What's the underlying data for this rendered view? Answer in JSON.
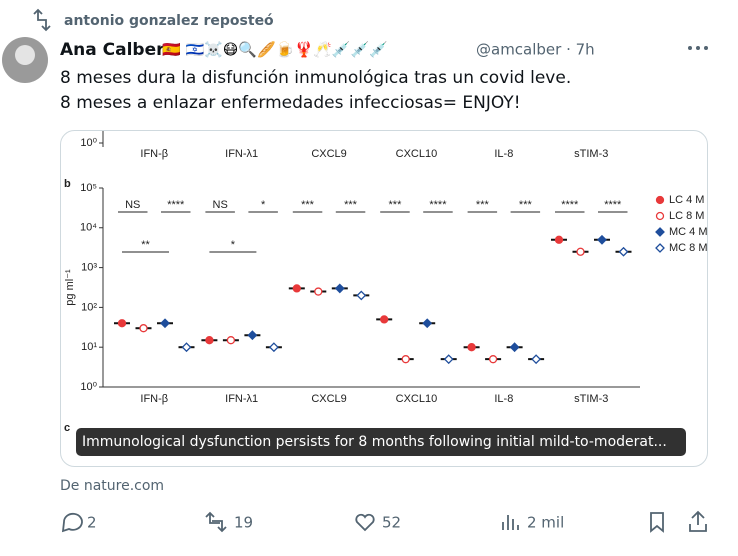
{
  "repost": "antonio gonzalez reposteó",
  "author": {
    "name": "Ana Calber",
    "emojis": "🇪🇸 🇮🇱☠️😷🔍🥖🍺🦞🥂💉💉💉",
    "handle": "@amcalber · 7h"
  },
  "text": [
    "8 meses dura la disfunción inmunológica tras un covid leve.",
    "8 meses a enlazar enfermedades infecciosas= ENJOY!"
  ],
  "card": {
    "caption": "Immunological dysfunction persists for 8 months following initial mild-to-moderat...",
    "source": "De nature.com"
  },
  "actions": {
    "replies": "2",
    "reposts": "19",
    "likes": "52",
    "views": "2 mil"
  },
  "chart_data": {
    "type": "dotplot",
    "panel_label": "b",
    "next_panel_label": "c",
    "top_ytick": {
      "value": 1,
      "label": "10⁰"
    },
    "top_categories": [
      "IFN-β",
      "IFN-λ1",
      "CXCL9",
      "CXCL10",
      "IL-8",
      "sTIM-3"
    ],
    "categories": [
      "IFN-β",
      "IFN-λ1",
      "CXCL9",
      "CXCL10",
      "IL-8",
      "sTIM-3"
    ],
    "y_label": "pg ml⁻¹",
    "log_scale": true,
    "ylim": [
      1,
      100000
    ],
    "yticks": [
      {
        "value": 1,
        "label": "10⁰"
      },
      {
        "value": 10,
        "label": "10¹"
      },
      {
        "value": 100,
        "label": "10²"
      },
      {
        "value": 1000,
        "label": "10³"
      },
      {
        "value": 10000,
        "label": "10⁴"
      },
      {
        "value": 100000,
        "label": "10⁵"
      }
    ],
    "series": [
      {
        "name": "LC 4 M",
        "color": "#e8393a",
        "marker": "circle",
        "filled": true,
        "values": [
          40,
          15,
          300,
          50,
          10,
          5000
        ]
      },
      {
        "name": "LC 8 M",
        "color": "#e8393a",
        "marker": "circle",
        "filled": false,
        "values": [
          30,
          15,
          250,
          5,
          5,
          2500
        ]
      },
      {
        "name": "MC 4 M",
        "color": "#1f4e9c",
        "marker": "diamond",
        "filled": true,
        "values": [
          40,
          20,
          300,
          40,
          10,
          5000
        ]
      },
      {
        "name": "MC 8 M",
        "color": "#1f4e9c",
        "marker": "diamond",
        "filled": false,
        "values": [
          10,
          10,
          200,
          5,
          5,
          2500
        ]
      }
    ],
    "significance": [
      "NS",
      "****",
      "NS",
      "*",
      "***",
      "***",
      "***",
      "****",
      "***",
      "***",
      "****",
      "****"
    ],
    "significance_cross": [
      "**",
      "*"
    ]
  }
}
